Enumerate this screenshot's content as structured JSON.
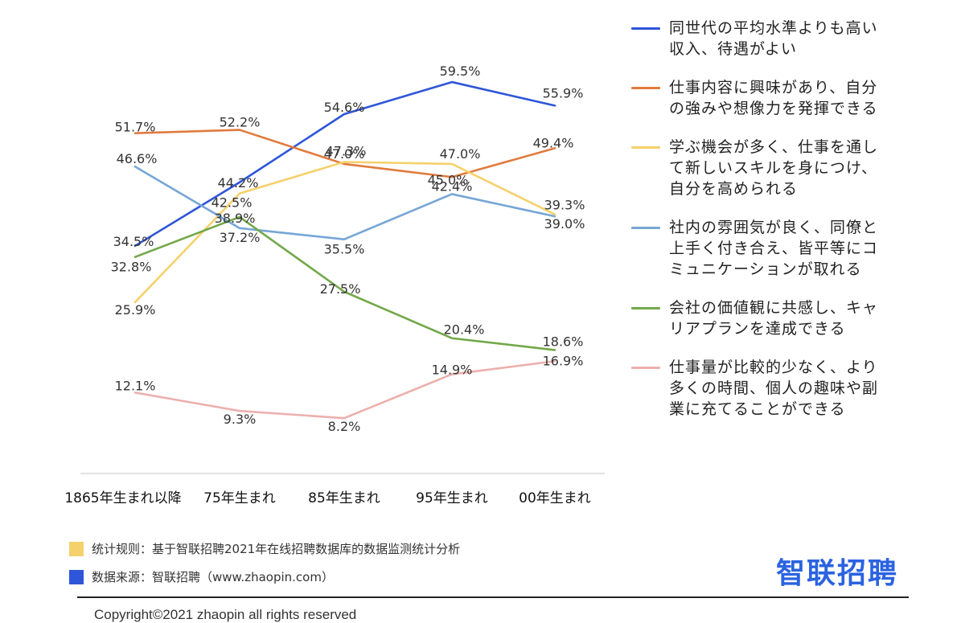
{
  "chart_data": {
    "type": "line",
    "categories": [
      "1865年生まれ以降",
      "75年生まれ",
      "85年生まれ",
      "95年生まれ",
      "00年生まれ"
    ],
    "ylim": [
      0,
      65
    ],
    "grid": false,
    "legend_position": "right",
    "series": [
      {
        "name": "同世代の平均水準よりも高い\n収入、待遇がよい",
        "color": "#2f56d8",
        "values": [
          34.5,
          44.2,
          54.6,
          59.5,
          55.9
        ],
        "labels": [
          "34.5%",
          "44.2%",
          "54.6%",
          "59.5%",
          "55.9%"
        ]
      },
      {
        "name": "仕事内容に興味があり、自分\nの強みや想像力を発揮できる",
        "color": "#e07b3e",
        "values": [
          51.7,
          52.2,
          47.0,
          45.0,
          49.4
        ],
        "labels": [
          "51.7%",
          "52.2%",
          "47.0%",
          "45.0%",
          "49.4%"
        ]
      },
      {
        "name": "学ぶ機会が多く、仕事を通し\nて新しいスキルを身につけ、\n自分を高められる",
        "color": "#f5d16b",
        "values": [
          25.9,
          42.5,
          47.3,
          47.0,
          39.3
        ],
        "labels": [
          "25.9%",
          "42.5%",
          "47.3%",
          "47.0%",
          "39.3%"
        ]
      },
      {
        "name": "社内の雰囲気が良く、同僚と\n上手く付き合え、皆平等にコ\nミュニケーションが取れる",
        "color": "#76a6d6",
        "values": [
          46.6,
          37.2,
          35.5,
          42.4,
          39.0
        ],
        "labels": [
          "46.6%",
          "37.2%",
          "35.5%",
          "42.4%",
          "39.0%"
        ]
      },
      {
        "name": "会社の価値観に共感し、キャ\nリアプランを達成できる",
        "color": "#73a84a",
        "values": [
          32.8,
          38.9,
          27.5,
          20.4,
          18.6
        ],
        "labels": [
          "32.8%",
          "38.9%",
          "27.5%",
          "20.4%",
          "18.6%"
        ]
      },
      {
        "name": "仕事量が比較的少なく、より\n多くの時間、個人の趣味や副\n業に充てることができる",
        "color": "#ecb0ac",
        "values": [
          12.1,
          9.3,
          8.2,
          14.9,
          16.9
        ],
        "labels": [
          "12.1%",
          "9.3%",
          "8.2%",
          "14.9%",
          "16.9%"
        ]
      }
    ]
  },
  "footer": {
    "note1": "统计规则：基于智联招聘2021年在线招聘数据库的数据监测统计分析",
    "note1_color": "#f5d16b",
    "note2": "数据来源：智联招聘（www.zhaopin.com）",
    "note2_color": "#2f56d8",
    "brand": "智联招聘",
    "copyright": "Copyright©2021 zhaopin  all rights reserved"
  }
}
